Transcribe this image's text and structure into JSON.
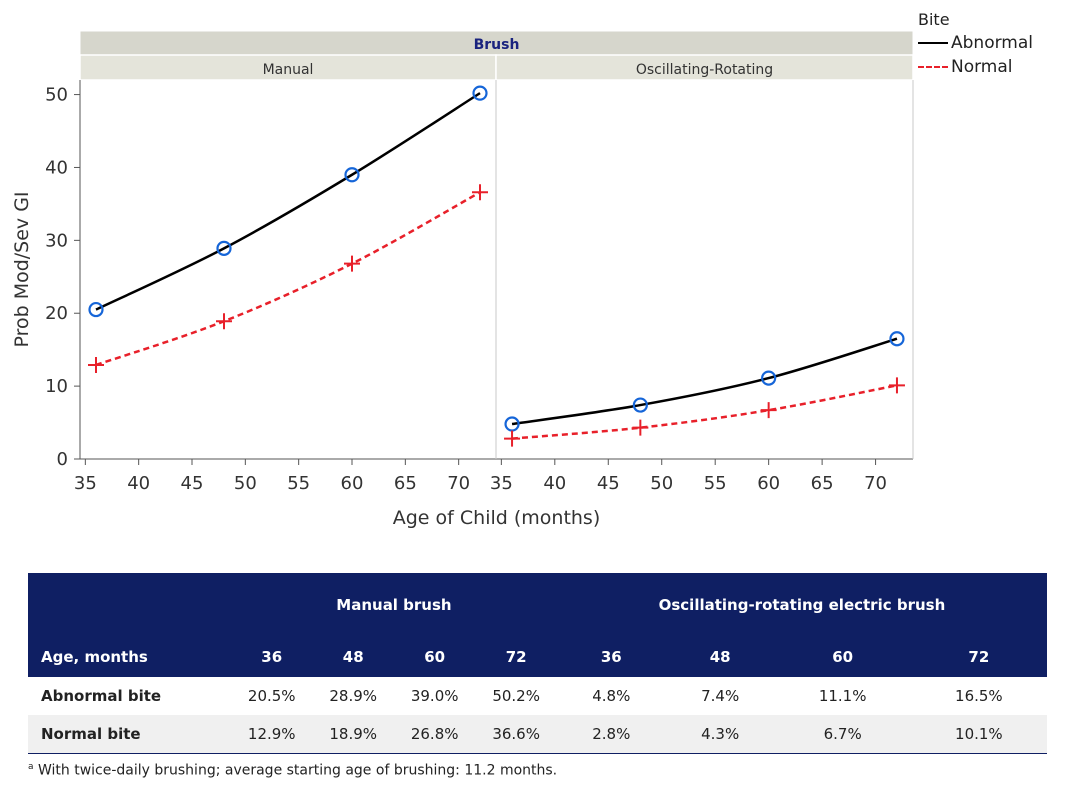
{
  "chart_data": {
    "type": "line",
    "panel_group_title": "Brush",
    "panels": [
      "Manual",
      "Oscillating-Rotating"
    ],
    "xlabel": "Age of Child (months)",
    "ylabel": "Prob Mod/Sev GI",
    "x_ticks": [
      35,
      40,
      45,
      50,
      55,
      60,
      65,
      70
    ],
    "y_ticks": [
      0,
      10,
      20,
      30,
      40,
      50
    ],
    "xlim": [
      34.5,
      73.5
    ],
    "ylim": [
      0,
      52
    ],
    "x": [
      36,
      48,
      60,
      72
    ],
    "legend_title": "Bite",
    "series": [
      {
        "name": "Abnormal",
        "color": "#000000",
        "marker_color": "#1565d8",
        "marker": "circle",
        "dash": "solid",
        "values": {
          "Manual": [
            20.5,
            28.9,
            39.0,
            50.2
          ],
          "Oscillating-Rotating": [
            4.8,
            7.4,
            11.1,
            16.5
          ]
        }
      },
      {
        "name": "Normal",
        "color": "#e8202a",
        "marker_color": "#e8202a",
        "marker": "plus",
        "dash": "dashed",
        "values": {
          "Manual": [
            12.9,
            18.9,
            26.8,
            36.6
          ],
          "Oscillating-Rotating": [
            2.8,
            4.3,
            6.7,
            10.1
          ]
        }
      }
    ],
    "legend_position": "top-right",
    "grid": false
  },
  "table": {
    "group_headers": [
      "Manual brush",
      "Oscillating-rotating electric brush"
    ],
    "age_label": "Age, months",
    "ages": [
      "36",
      "48",
      "60",
      "72",
      "36",
      "48",
      "60",
      "72"
    ],
    "rows": [
      {
        "label": "Abnormal bite",
        "values": [
          "20.5%",
          "28.9%",
          "39.0%",
          "50.2%",
          "4.8%",
          "7.4%",
          "11.1%",
          "16.5%"
        ]
      },
      {
        "label": "Normal bite",
        "values": [
          "12.9%",
          "18.9%",
          "26.8%",
          "36.6%",
          "2.8%",
          "4.3%",
          "6.7%",
          "10.1%"
        ]
      }
    ]
  },
  "footnote": {
    "marker": "a",
    "text": " With twice-daily brushing; average starting age of brushing: 11.2 months."
  }
}
